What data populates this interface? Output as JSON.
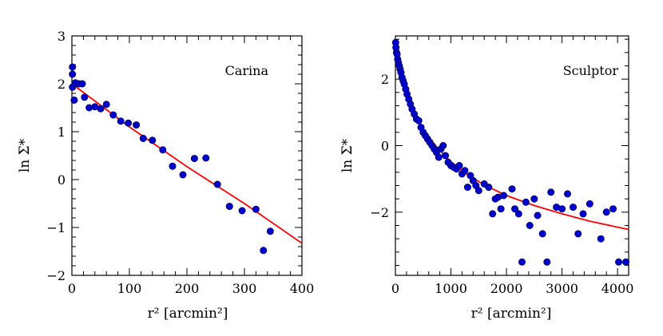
{
  "chart_data": [
    {
      "type": "scatter",
      "panel_label": "Carina",
      "xlabel": "r² [arcmin²]",
      "ylabel": "ln Σ*",
      "xlim": [
        0,
        400
      ],
      "ylim": [
        -2,
        3
      ],
      "x_ticks": [
        0,
        100,
        200,
        300,
        400
      ],
      "y_ticks": [
        -2,
        -1,
        0,
        1,
        2,
        3
      ],
      "x_tick_labels": [
        "0",
        "100",
        "200",
        "300",
        "400"
      ],
      "y_tick_labels": [
        "−2",
        "−1",
        "0",
        "1",
        "2",
        "3"
      ],
      "points": [
        [
          1,
          2.35
        ],
        [
          1,
          2.2
        ],
        [
          1,
          1.93
        ],
        [
          4,
          1.66
        ],
        [
          6,
          2.02
        ],
        [
          12,
          2.0
        ],
        [
          18,
          2.0
        ],
        [
          22,
          1.72
        ],
        [
          30,
          1.5
        ],
        [
          40,
          1.52
        ],
        [
          50,
          1.48
        ],
        [
          60,
          1.57
        ],
        [
          72,
          1.35
        ],
        [
          85,
          1.22
        ],
        [
          98,
          1.18
        ],
        [
          112,
          1.14
        ],
        [
          124,
          0.86
        ],
        [
          140,
          0.82
        ],
        [
          158,
          0.62
        ],
        [
          175,
          0.28
        ],
        [
          193,
          0.1
        ],
        [
          213,
          0.44
        ],
        [
          233,
          0.45
        ],
        [
          253,
          -0.1
        ],
        [
          274,
          -0.56
        ],
        [
          296,
          -0.65
        ],
        [
          320,
          -0.62
        ],
        [
          333,
          -1.48
        ],
        [
          345,
          -1.08
        ]
      ],
      "fit": [
        [
          0,
          2.0
        ],
        [
          100,
          1.1
        ],
        [
          200,
          0.27
        ],
        [
          300,
          -0.5
        ],
        [
          400,
          -1.33
        ]
      ]
    },
    {
      "type": "scatter",
      "panel_label": "Sculptor",
      "xlabel": "r² [arcmin²]",
      "ylabel": "ln Σ*",
      "xlim": [
        0,
        4200
      ],
      "ylim": [
        -3.9,
        3.3
      ],
      "x_ticks": [
        0,
        1000,
        2000,
        3000,
        4000
      ],
      "y_ticks": [
        -2,
        0,
        2
      ],
      "x_tick_labels": [
        "0",
        "1000",
        "2000",
        "3000",
        "4000"
      ],
      "y_tick_labels": [
        "−2",
        "0",
        "2"
      ],
      "points": [
        [
          5,
          3.1
        ],
        [
          10,
          2.95
        ],
        [
          20,
          2.8
        ],
        [
          30,
          2.75
        ],
        [
          40,
          2.6
        ],
        [
          55,
          2.5
        ],
        [
          70,
          2.4
        ],
        [
          85,
          2.3
        ],
        [
          100,
          2.2
        ],
        [
          120,
          2.05
        ],
        [
          140,
          1.95
        ],
        [
          160,
          1.85
        ],
        [
          185,
          1.7
        ],
        [
          210,
          1.55
        ],
        [
          240,
          1.4
        ],
        [
          270,
          1.25
        ],
        [
          300,
          1.1
        ],
        [
          340,
          0.95
        ],
        [
          380,
          0.8
        ],
        [
          420,
          0.75
        ],
        [
          460,
          0.55
        ],
        [
          500,
          0.4
        ],
        [
          540,
          0.3
        ],
        [
          580,
          0.2
        ],
        [
          620,
          0.1
        ],
        [
          660,
          0.0
        ],
        [
          700,
          -0.1
        ],
        [
          740,
          -0.2
        ],
        [
          780,
          -0.35
        ],
        [
          820,
          -0.1
        ],
        [
          860,
          0.0
        ],
        [
          900,
          -0.3
        ],
        [
          950,
          -0.5
        ],
        [
          1000,
          -0.6
        ],
        [
          1050,
          -0.65
        ],
        [
          1100,
          -0.7
        ],
        [
          1150,
          -0.6
        ],
        [
          1200,
          -0.85
        ],
        [
          1250,
          -0.75
        ],
        [
          1300,
          -1.25
        ],
        [
          1350,
          -0.9
        ],
        [
          1400,
          -1.05
        ],
        [
          1450,
          -1.2
        ],
        [
          1500,
          -1.35
        ],
        [
          1600,
          -1.15
        ],
        [
          1680,
          -1.25
        ],
        [
          1750,
          -2.05
        ],
        [
          1800,
          -1.6
        ],
        [
          1850,
          -1.55
        ],
        [
          1900,
          -1.9
        ],
        [
          1950,
          -1.5
        ],
        [
          2100,
          -1.3
        ],
        [
          2150,
          -1.9
        ],
        [
          2220,
          -2.05
        ],
        [
          2280,
          -3.5
        ],
        [
          2350,
          -1.7
        ],
        [
          2420,
          -2.4
        ],
        [
          2500,
          -1.6
        ],
        [
          2560,
          -2.1
        ],
        [
          2650,
          -2.65
        ],
        [
          2730,
          -3.5
        ],
        [
          2800,
          -1.4
        ],
        [
          2900,
          -1.85
        ],
        [
          3000,
          -1.9
        ],
        [
          3100,
          -1.45
        ],
        [
          3200,
          -1.85
        ],
        [
          3290,
          -2.65
        ],
        [
          3380,
          -2.05
        ],
        [
          3500,
          -1.75
        ],
        [
          3700,
          -2.8
        ],
        [
          3800,
          -2.0
        ],
        [
          3920,
          -1.9
        ],
        [
          4020,
          -3.5
        ],
        [
          4150,
          -3.5
        ]
      ],
      "fit": [
        [
          0,
          3.0
        ],
        [
          50,
          2.55
        ],
        [
          100,
          2.2
        ],
        [
          200,
          1.6
        ],
        [
          300,
          1.15
        ],
        [
          400,
          0.8
        ],
        [
          600,
          0.25
        ],
        [
          800,
          -0.15
        ],
        [
          1000,
          -0.48
        ],
        [
          1250,
          -0.82
        ],
        [
          1500,
          -1.08
        ],
        [
          1750,
          -1.3
        ],
        [
          2000,
          -1.5
        ],
        [
          2500,
          -1.8
        ],
        [
          3000,
          -2.05
        ],
        [
          3500,
          -2.27
        ],
        [
          4000,
          -2.45
        ],
        [
          4200,
          -2.52
        ]
      ]
    }
  ]
}
